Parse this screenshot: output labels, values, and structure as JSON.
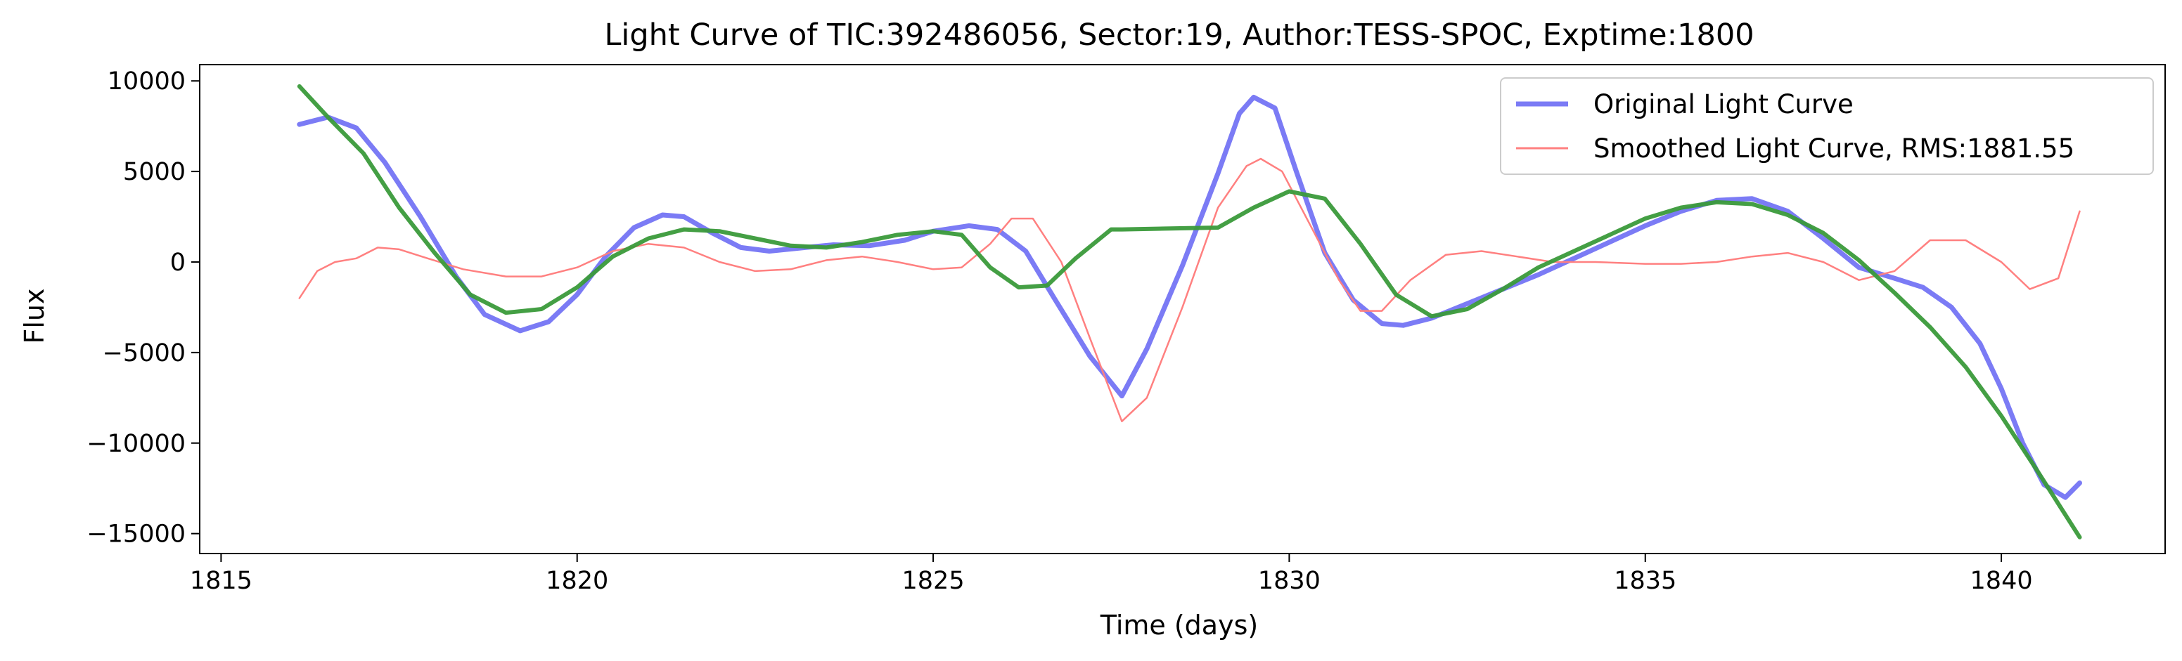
{
  "chart_data": {
    "type": "line",
    "title": "Light Curve of TIC:392486056, Sector:19, Author:TESS-SPOC, Exptime:1800",
    "xlabel": "Time (days)",
    "ylabel": "Flux",
    "xlim": [
      1814.7,
      1842.3
    ],
    "ylim": [
      -16100,
      10900
    ],
    "xticks": [
      1815,
      1820,
      1825,
      1830,
      1835,
      1840
    ],
    "yticks": [
      10000,
      5000,
      0,
      -5000,
      -10000,
      -15000
    ],
    "ytick_labels": [
      "10000",
      "5000",
      "0",
      "−5000",
      "−10000",
      "−15000"
    ],
    "grid": false,
    "legend_position": "top-right",
    "legend": [
      {
        "label": "Original Light Curve",
        "color": "#7b7bf5"
      },
      {
        "label": "Smoothed Light Curve, RMS:1881.55",
        "color": "#ff8080"
      }
    ],
    "series": [
      {
        "name": "Original Light Curve",
        "color": "#7b7bf5",
        "x": [
          1816.1,
          1816.5,
          1816.9,
          1817.3,
          1817.8,
          1818.3,
          1818.7,
          1819.2,
          1819.6,
          1820.0,
          1820.4,
          1820.8,
          1821.2,
          1821.5,
          1821.9,
          1822.3,
          1822.7,
          1823.2,
          1823.6,
          1824.1,
          1824.6,
          1825.0,
          1825.5,
          1825.9,
          1826.3,
          1826.7,
          1827.2,
          1827.65,
          1828.0,
          1828.5,
          1829.0,
          1829.3,
          1829.5,
          1829.8,
          1830.1,
          1830.5,
          1830.9,
          1831.3,
          1831.6,
          1832.0,
          1832.5,
          1833.0,
          1833.5,
          1834.0,
          1834.5,
          1835.0,
          1835.5,
          1836.0,
          1836.5,
          1837.0,
          1837.5,
          1838.0,
          1838.5,
          1838.9,
          1839.3,
          1839.7,
          1840.0,
          1840.3,
          1840.6,
          1840.9,
          1841.1
        ],
        "y": [
          7600,
          8000,
          7400,
          5500,
          2500,
          -800,
          -2900,
          -3800,
          -3300,
          -1800,
          300,
          1900,
          2600,
          2500,
          1600,
          800,
          600,
          800,
          950,
          900,
          1200,
          1700,
          2000,
          1800,
          600,
          -2000,
          -5200,
          -7400,
          -4800,
          -200,
          4900,
          8200,
          9100,
          8500,
          5000,
          500,
          -2100,
          -3400,
          -3500,
          -3100,
          -2300,
          -1500,
          -700,
          200,
          1100,
          2000,
          2800,
          3400,
          3500,
          2800,
          1300,
          -300,
          -900,
          -1400,
          -2500,
          -4500,
          -7000,
          -10000,
          -12300,
          -13000,
          -12200
        ]
      },
      {
        "name": "Smoothed Light Curve, RMS:1881.55",
        "color": "#ff8080",
        "x": [
          1816.1,
          1816.35,
          1816.6,
          1816.9,
          1817.2,
          1817.5,
          1817.9,
          1818.4,
          1819.0,
          1819.5,
          1820.0,
          1820.5,
          1821.0,
          1821.5,
          1822.0,
          1822.5,
          1823.0,
          1823.5,
          1824.0,
          1824.5,
          1825.0,
          1825.4,
          1825.8,
          1826.1,
          1826.4,
          1826.8,
          1827.2,
          1827.65,
          1828.0,
          1828.5,
          1829.0,
          1829.4,
          1829.6,
          1829.9,
          1830.3,
          1830.7,
          1831.0,
          1831.3,
          1831.7,
          1832.2,
          1832.7,
          1833.2,
          1833.7,
          1834.3,
          1835.0,
          1835.5,
          1836.0,
          1836.5,
          1837.0,
          1837.5,
          1838.0,
          1838.5,
          1839.0,
          1839.5,
          1840.0,
          1840.4,
          1840.8,
          1841.1
        ],
        "y": [
          -2000,
          -500,
          0,
          200,
          800,
          700,
          200,
          -400,
          -800,
          -800,
          -300,
          600,
          1000,
          800,
          0,
          -500,
          -400,
          100,
          300,
          0,
          -400,
          -300,
          1000,
          2400,
          2400,
          0,
          -4200,
          -8800,
          -7500,
          -2500,
          3000,
          5300,
          5700,
          5000,
          2000,
          -1000,
          -2700,
          -2700,
          -1000,
          400,
          600,
          300,
          0,
          0,
          -100,
          -100,
          0,
          300,
          500,
          0,
          -1000,
          -500,
          1200,
          1200,
          0,
          -1500,
          -900,
          2800
        ]
      },
      {
        "name": "",
        "color": "#3a9a3a",
        "x": [
          1816.1,
          1816.5,
          1817.0,
          1817.5,
          1818.0,
          1818.5,
          1819.0,
          1819.5,
          1820.0,
          1820.5,
          1821.0,
          1821.5,
          1822.0,
          1822.5,
          1823.0,
          1823.5,
          1824.0,
          1824.5,
          1825.0,
          1825.4,
          1825.8,
          1826.2,
          1826.6,
          1827.0,
          1827.5,
          1827.65,
          1829.0,
          1829.5,
          1830.0,
          1830.5,
          1831.0,
          1831.5,
          1832.0,
          1832.5,
          1833.0,
          1833.5,
          1834.0,
          1834.5,
          1835.0,
          1835.5,
          1836.0,
          1836.5,
          1837.0,
          1837.5,
          1838.0,
          1838.5,
          1839.0,
          1839.5,
          1840.0,
          1840.5,
          1841.1
        ],
        "y": [
          9700,
          8000,
          6000,
          3000,
          500,
          -1800,
          -2800,
          -2600,
          -1400,
          300,
          1300,
          1800,
          1700,
          1300,
          900,
          800,
          1100,
          1500,
          1700,
          1500,
          -300,
          -1400,
          -1300,
          200,
          1800,
          1800,
          1900,
          3000,
          3900,
          3500,
          1000,
          -1800,
          -3000,
          -2600,
          -1500,
          -300,
          600,
          1500,
          2400,
          3000,
          3300,
          3200,
          2600,
          1600,
          100,
          -1700,
          -3600,
          -5800,
          -8500,
          -11500,
          -15200
        ]
      }
    ]
  }
}
